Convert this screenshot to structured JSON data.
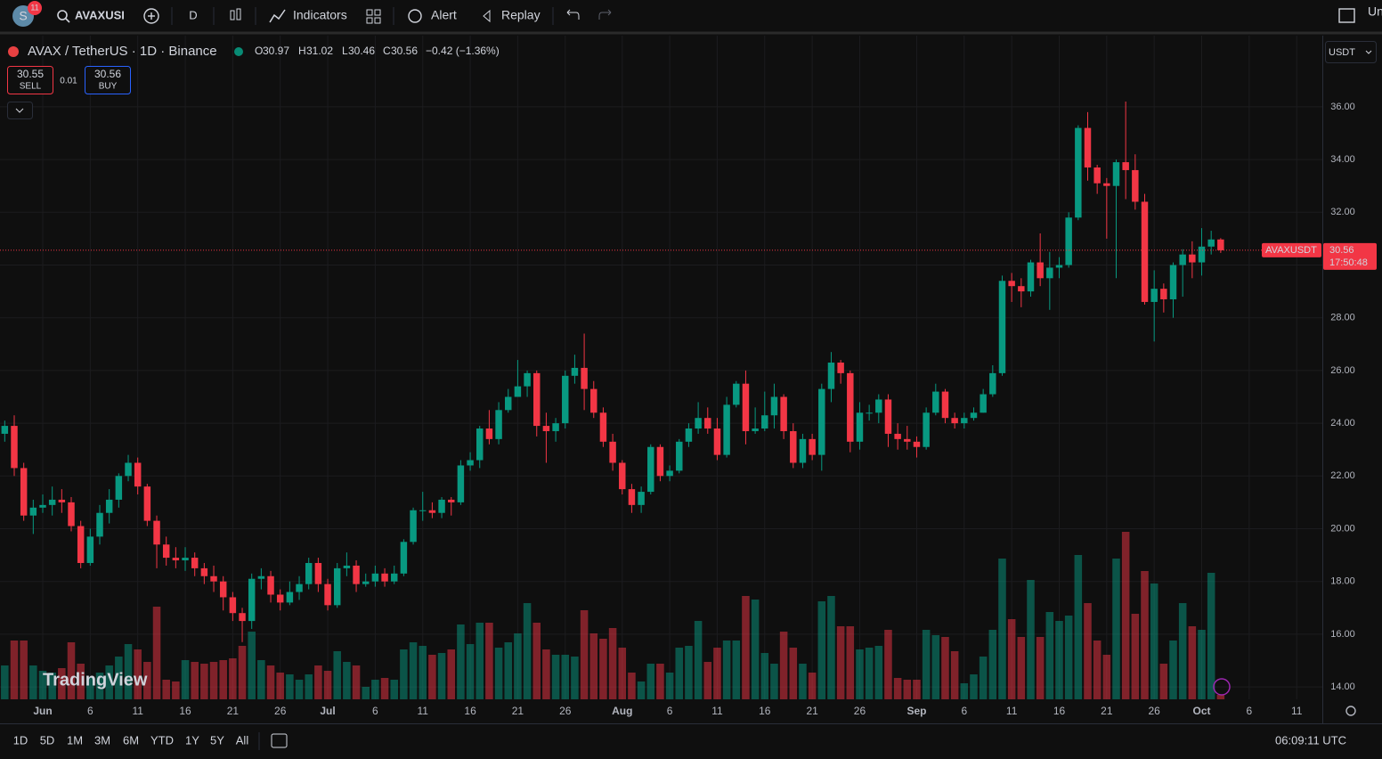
{
  "toolbar": {
    "avatar": "S",
    "badge": "11",
    "symbol": "AVAXUSI",
    "interval": "D",
    "indicators": "Indicators",
    "alert": "Alert",
    "replay": "Replay",
    "right": "Un"
  },
  "legend": {
    "title": "AVAX / TetherUS · 1D · Binance",
    "o": "O",
    "h": "H",
    "l": "L",
    "c": "C",
    "change": "−0.42 (−1.36%)"
  },
  "trade": {
    "sell_price": "30.55",
    "sell": "SELL",
    "spread": "0.01",
    "buy_price": "30.56",
    "buy": "BUY"
  },
  "currency": "USDT",
  "price_label": "AVAXUSDT",
  "countdown": "17:50:48",
  "watermark": "TradingView",
  "ranges": [
    "1D",
    "5D",
    "1M",
    "3M",
    "6M",
    "YTD",
    "1Y",
    "5Y",
    "All"
  ],
  "clock": "06:09:11 UTC",
  "chart_data": {
    "type": "candlestick",
    "open": [
      23.6,
      23.9,
      22.3,
      20.5,
      20.8,
      20.9,
      21.1,
      21.0,
      20.1,
      18.7,
      19.7,
      20.6,
      21.1,
      22.0,
      22.5,
      21.6,
      20.3,
      19.4,
      18.9,
      18.8,
      18.9,
      18.5,
      18.2,
      18.0,
      17.4,
      16.8,
      16.5,
      18.1,
      18.2,
      17.5,
      17.2,
      17.6,
      17.9,
      18.7,
      17.9,
      17.1,
      18.5,
      18.6,
      17.9,
      18.0,
      18.3,
      18.0,
      18.3,
      19.5,
      20.7,
      20.7,
      20.6,
      21.1,
      21.0,
      22.4,
      22.6,
      23.8,
      23.4,
      24.5,
      25.0,
      25.4,
      25.9,
      23.9,
      23.7,
      24.0,
      25.8,
      26.1,
      25.3,
      24.4,
      23.3,
      22.5,
      21.5,
      20.9,
      21.4,
      23.1,
      22.0,
      22.2,
      23.3,
      23.8,
      24.2,
      23.8,
      22.8,
      24.7,
      25.5,
      23.7,
      23.8,
      24.3,
      25.0,
      23.7,
      22.5,
      23.4,
      22.8,
      25.3,
      26.3,
      25.9,
      23.3,
      24.4,
      24.4,
      24.9,
      23.6,
      23.4,
      23.3,
      23.1,
      24.4,
      25.2,
      24.2,
      24.0,
      24.2,
      24.4,
      25.1,
      25.9,
      29.4,
      29.2,
      29.0,
      30.1,
      29.5,
      29.9,
      30.0,
      31.8,
      35.2,
      33.7,
      33.1,
      33.0,
      33.9,
      33.6,
      32.4,
      28.6,
      29.1,
      28.7,
      30.0,
      30.4,
      30.1,
      30.7,
      30.97
    ],
    "high": [
      24.1,
      24.3,
      22.5,
      21.1,
      21.3,
      21.6,
      21.5,
      21.2,
      20.3,
      20.0,
      20.9,
      21.5,
      22.1,
      22.8,
      22.7,
      21.7,
      20.5,
      19.7,
      19.3,
      19.3,
      19.1,
      18.7,
      18.6,
      18.2,
      17.6,
      17.0,
      18.3,
      18.5,
      18.4,
      17.7,
      18.0,
      18.2,
      18.9,
      18.9,
      18.1,
      18.7,
      19.1,
      18.8,
      18.3,
      18.6,
      18.5,
      18.6,
      19.6,
      20.8,
      21.4,
      21.0,
      21.2,
      21.2,
      22.6,
      22.9,
      23.9,
      24.5,
      24.8,
      25.3,
      26.4,
      26.0,
      26.0,
      24.4,
      24.2,
      26.0,
      26.6,
      27.4,
      25.6,
      24.6,
      23.6,
      22.6,
      21.7,
      21.6,
      23.2,
      23.2,
      22.4,
      23.4,
      24.0,
      24.8,
      24.6,
      24.2,
      25.0,
      25.6,
      26.0,
      24.6,
      25.2,
      25.5,
      25.1,
      24.0,
      23.6,
      23.6,
      25.5,
      26.7,
      26.4,
      26.0,
      24.8,
      24.7,
      25.1,
      25.1,
      24.0,
      23.9,
      23.5,
      24.6,
      25.5,
      25.3,
      24.4,
      24.4,
      24.6,
      25.3,
      26.2,
      29.6,
      29.7,
      29.5,
      30.2,
      31.2,
      30.5,
      30.3,
      32.0,
      35.3,
      35.8,
      33.8,
      33.3,
      34.0,
      36.2,
      34.2,
      32.7,
      29.8,
      29.3,
      30.1,
      30.6,
      30.9,
      31.4,
      31.3,
      31.02
    ],
    "low": [
      23.3,
      22.0,
      20.3,
      19.8,
      20.6,
      20.5,
      20.6,
      19.9,
      18.5,
      18.6,
      19.4,
      20.2,
      20.8,
      21.8,
      21.3,
      20.1,
      18.5,
      18.6,
      18.5,
      18.4,
      18.2,
      17.9,
      17.6,
      16.9,
      16.5,
      15.7,
      16.2,
      17.7,
      17.2,
      16.9,
      17.1,
      17.3,
      17.7,
      17.6,
      16.9,
      17.0,
      18.2,
      17.6,
      17.8,
      17.8,
      17.8,
      17.9,
      18.2,
      19.4,
      20.3,
      20.4,
      20.4,
      20.5,
      20.9,
      22.2,
      22.3,
      23.2,
      23.2,
      24.4,
      25.0,
      25.0,
      23.5,
      22.5,
      23.3,
      23.8,
      25.5,
      24.5,
      24.2,
      23.1,
      22.2,
      21.3,
      20.6,
      20.6,
      21.3,
      21.8,
      21.8,
      22.1,
      23.1,
      23.6,
      23.6,
      22.6,
      22.7,
      24.6,
      23.2,
      23.6,
      23.7,
      23.8,
      23.4,
      22.3,
      22.3,
      22.6,
      22.2,
      24.8,
      25.5,
      22.9,
      23.0,
      24.1,
      24.0,
      23.1,
      23.0,
      23.0,
      22.7,
      23.0,
      24.3,
      24.0,
      23.8,
      23.8,
      24.1,
      24.4,
      25.0,
      25.8,
      28.6,
      28.4,
      28.8,
      29.2,
      28.3,
      29.5,
      29.9,
      31.7,
      33.2,
      32.7,
      31.0,
      29.5,
      32.5,
      32.1,
      28.5,
      27.1,
      28.2,
      28.0,
      28.8,
      29.5,
      29.6,
      30.4,
      30.46
    ],
    "close": [
      23.9,
      22.3,
      20.5,
      20.8,
      20.9,
      21.1,
      21.0,
      20.1,
      18.7,
      19.7,
      20.6,
      21.1,
      22.0,
      22.5,
      21.6,
      20.3,
      19.4,
      18.9,
      18.8,
      18.9,
      18.5,
      18.2,
      18.0,
      17.4,
      16.8,
      16.5,
      18.1,
      18.2,
      17.5,
      17.2,
      17.6,
      17.9,
      18.7,
      17.9,
      17.1,
      18.5,
      18.6,
      17.9,
      18.0,
      18.3,
      18.0,
      18.3,
      19.5,
      20.7,
      20.7,
      20.6,
      21.1,
      21.0,
      22.4,
      22.6,
      23.8,
      23.4,
      24.5,
      25.0,
      25.4,
      25.9,
      23.9,
      23.7,
      24.0,
      25.8,
      26.1,
      25.3,
      24.4,
      23.3,
      22.5,
      21.5,
      20.9,
      21.4,
      23.1,
      22.0,
      22.2,
      23.3,
      23.8,
      24.2,
      23.8,
      22.8,
      24.7,
      25.5,
      23.7,
      23.8,
      24.3,
      25.0,
      23.7,
      22.5,
      23.4,
      22.8,
      25.3,
      26.3,
      25.9,
      23.3,
      24.4,
      24.4,
      24.9,
      23.6,
      23.4,
      23.3,
      23.1,
      24.4,
      25.2,
      24.2,
      24.0,
      24.2,
      24.4,
      25.1,
      25.9,
      29.4,
      29.2,
      29.0,
      30.1,
      29.5,
      29.9,
      30.0,
      31.8,
      35.2,
      33.7,
      33.1,
      33.0,
      33.9,
      33.6,
      32.4,
      28.6,
      29.1,
      28.7,
      30.0,
      30.4,
      30.1,
      30.7,
      30.97,
      30.56
    ],
    "volume": [
      3.8,
      6.6,
      6.6,
      3.8,
      3.2,
      3.0,
      3.5,
      6.4,
      4.0,
      2.5,
      3.0,
      3.8,
      4.8,
      6.2,
      5.6,
      4.2,
      10.4,
      2.2,
      2.0,
      4.4,
      4.2,
      4.0,
      4.2,
      4.4,
      4.6,
      6.0,
      7.6,
      4.4,
      3.8,
      3.0,
      2.8,
      2.2,
      2.8,
      3.8,
      3.2,
      5.4,
      4.2,
      3.8,
      1.4,
      2.2,
      2.4,
      2.2,
      5.6,
      6.4,
      6.0,
      5.0,
      5.2,
      5.6,
      8.4,
      6.2,
      8.6,
      8.6,
      5.8,
      6.4,
      7.4,
      10.8,
      8.6,
      5.6,
      5.0,
      5.0,
      4.8,
      10.0,
      7.4,
      6.8,
      8.0,
      5.8,
      3.0,
      2.0,
      4.0,
      4.0,
      3.0,
      5.8,
      6.0,
      8.8,
      4.2,
      5.8,
      6.6,
      6.6,
      11.6,
      11.2,
      5.2,
      4.0,
      7.6,
      5.8,
      4.0,
      3.0,
      11.0,
      11.6,
      8.2,
      8.2,
      5.6,
      5.8,
      6.0,
      7.8,
      2.4,
      2.2,
      2.2,
      7.8,
      7.2,
      7.0,
      5.4,
      1.8,
      2.8,
      4.8,
      7.8,
      15.8,
      9.0,
      7.0,
      13.4,
      7.0,
      9.8,
      8.8,
      9.4,
      16.2,
      10.8,
      6.6,
      5.0,
      15.8,
      18.8,
      9.6,
      14.4,
      13.0,
      4.0,
      6.6,
      10.8,
      8.2,
      7.8,
      14.2,
      0.5
    ],
    "up_color": "#089981",
    "down_color": "#f23645",
    "xlim": [
      -0.5,
      138.7
    ],
    "xticks": [
      {
        "value": 4,
        "label": "Jun"
      },
      {
        "value": 9,
        "label": "6"
      },
      {
        "value": 14,
        "label": "11"
      },
      {
        "value": 19,
        "label": "16"
      },
      {
        "value": 24,
        "label": "21"
      },
      {
        "value": 29,
        "label": "26"
      },
      {
        "value": 34,
        "label": "Jul"
      },
      {
        "value": 39,
        "label": "6"
      },
      {
        "value": 44,
        "label": "11"
      },
      {
        "value": 49,
        "label": "16"
      },
      {
        "value": 54,
        "label": "21"
      },
      {
        "value": 59,
        "label": "26"
      },
      {
        "value": 65,
        "label": "Aug"
      },
      {
        "value": 70,
        "label": "6"
      },
      {
        "value": 75,
        "label": "11"
      },
      {
        "value": 80,
        "label": "16"
      },
      {
        "value": 85,
        "label": "21"
      },
      {
        "value": 90,
        "label": "26"
      },
      {
        "value": 96,
        "label": "Sep"
      },
      {
        "value": 101,
        "label": "6"
      },
      {
        "value": 106,
        "label": "11"
      },
      {
        "value": 111,
        "label": "16"
      },
      {
        "value": 116,
        "label": "21"
      },
      {
        "value": 121,
        "label": "26"
      },
      {
        "value": 126,
        "label": "Oct"
      },
      {
        "value": 131,
        "label": "6"
      },
      {
        "value": 136,
        "label": "11"
      }
    ],
    "ylim": [
      13.53,
      38.7
    ],
    "yticks": [
      {
        "value": 14,
        "label": "14.00"
      },
      {
        "value": 16,
        "label": "16.00"
      },
      {
        "value": 18,
        "label": "18.00"
      },
      {
        "value": 20,
        "label": "20.00"
      },
      {
        "value": 22,
        "label": "22.00"
      },
      {
        "value": 24,
        "label": "24.00"
      },
      {
        "value": 26,
        "label": "26.00"
      },
      {
        "value": 28,
        "label": "28.00"
      },
      {
        "value": 30,
        "label": "30.00"
      },
      {
        "value": 32,
        "label": "32.00"
      },
      {
        "value": 34,
        "label": "34.00"
      },
      {
        "value": 36,
        "label": "36.00"
      }
    ],
    "vlim": [
      0,
      30
    ],
    "grid": true
  }
}
